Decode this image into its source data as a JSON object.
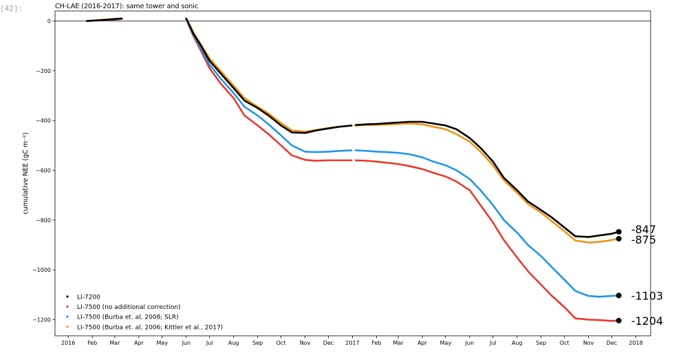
{
  "cell_prompt": "[42]:",
  "chart_data": {
    "type": "line",
    "title": "CH-LAE (2016-2017): same tower and sonic",
    "ylabel": "cumulative NEE (gC m⁻²)",
    "ylim": [
      -1265,
      40
    ],
    "x_ticks": [
      "2016",
      "Feb",
      "Mar",
      "Apr",
      "May",
      "Jun",
      "Jul",
      "Aug",
      "Sep",
      "Oct",
      "Nov",
      "Dec",
      "2017",
      "Feb",
      "Mar",
      "Apr",
      "May",
      "Jun",
      "Jul",
      "Aug",
      "Sep",
      "Oct",
      "Nov",
      "Dec",
      "2018"
    ],
    "y_ticks": [
      0,
      -200,
      -400,
      -600,
      -800,
      -1000,
      -1200
    ],
    "grid": false,
    "zero_line": true,
    "legend_position": "lower-left",
    "series": [
      {
        "name": "LI-7200",
        "color": "#000000",
        "x": [
          "2016-01-25",
          "2016-02-10",
          "2016-02-28",
          "2016-03-10",
          null,
          "2016-06-01",
          "2016-06-10",
          "2016-06-20",
          "2016-07-01",
          "2016-07-15",
          "2016-08-01",
          "2016-08-15",
          "2016-09-01",
          "2016-09-15",
          "2016-10-01",
          "2016-10-15",
          "2016-11-01",
          "2016-11-15",
          "2016-12-01",
          "2016-12-15",
          "2016-12-31",
          null,
          "2017-01-05",
          "2017-01-20",
          "2017-02-01",
          "2017-02-15",
          "2017-03-01",
          "2017-03-15",
          "2017-04-01",
          "2017-04-15",
          "2017-05-01",
          "2017-05-15",
          "2017-06-01",
          "2017-06-15",
          "2017-07-01",
          "2017-07-15",
          "2017-08-01",
          "2017-08-15",
          "2017-09-01",
          "2017-09-15",
          "2017-10-01",
          "2017-10-15",
          "2017-11-01",
          "2017-11-15",
          "2017-12-01",
          "2017-12-10"
        ],
        "y": [
          0,
          3,
          7,
          10,
          null,
          10,
          -50,
          -100,
          -160,
          -210,
          -270,
          -320,
          -350,
          -380,
          -420,
          -448,
          -450,
          -440,
          -432,
          -425,
          -420,
          null,
          -418,
          -415,
          -414,
          -411,
          -408,
          -405,
          -405,
          -412,
          -420,
          -435,
          -470,
          -510,
          -565,
          -630,
          -680,
          -725,
          -760,
          -790,
          -830,
          -865,
          -868,
          -862,
          -855,
          -847
        ]
      },
      {
        "name": "LI-7500 (no additional correction)",
        "color": "#e8392b",
        "x": [
          "2016-01-25",
          "2016-02-10",
          "2016-02-28",
          "2016-03-10",
          null,
          "2016-06-01",
          "2016-06-10",
          "2016-06-20",
          "2016-07-01",
          "2016-07-15",
          "2016-08-01",
          "2016-08-15",
          "2016-09-01",
          "2016-09-15",
          "2016-10-01",
          "2016-10-15",
          "2016-11-01",
          "2016-11-15",
          "2016-12-01",
          "2016-12-15",
          "2016-12-31",
          null,
          "2017-01-05",
          "2017-01-20",
          "2017-02-01",
          "2017-02-15",
          "2017-03-01",
          "2017-03-15",
          "2017-04-01",
          "2017-04-15",
          "2017-05-01",
          "2017-05-15",
          "2017-06-01",
          "2017-06-15",
          "2017-07-01",
          "2017-07-15",
          "2017-08-01",
          "2017-08-15",
          "2017-09-01",
          "2017-09-15",
          "2017-10-01",
          "2017-10-15",
          "2017-11-01",
          "2017-11-15",
          "2017-12-01",
          "2017-12-10"
        ],
        "y": [
          0,
          2,
          5,
          8,
          null,
          8,
          -60,
          -120,
          -190,
          -250,
          -310,
          -380,
          -420,
          -455,
          -500,
          -540,
          -558,
          -562,
          -560,
          -560,
          -560,
          null,
          -560,
          -562,
          -565,
          -570,
          -575,
          -583,
          -595,
          -610,
          -625,
          -645,
          -680,
          -740,
          -810,
          -880,
          -950,
          -1005,
          -1060,
          -1105,
          -1150,
          -1195,
          -1200,
          -1202,
          -1205,
          -1204
        ]
      },
      {
        "name": "LI-7500 (Burba et. al, 2008; SLR)",
        "color": "#1f96e8",
        "x": [
          "2016-01-25",
          "2016-02-10",
          "2016-02-28",
          "2016-03-10",
          null,
          "2016-06-01",
          "2016-06-10",
          "2016-06-20",
          "2016-07-01",
          "2016-07-15",
          "2016-08-01",
          "2016-08-15",
          "2016-09-01",
          "2016-09-15",
          "2016-10-01",
          "2016-10-15",
          "2016-11-01",
          "2016-11-15",
          "2016-12-01",
          "2016-12-15",
          "2016-12-31",
          null,
          "2017-01-05",
          "2017-01-20",
          "2017-02-01",
          "2017-02-15",
          "2017-03-01",
          "2017-03-15",
          "2017-04-01",
          "2017-04-15",
          "2017-05-01",
          "2017-05-15",
          "2017-06-01",
          "2017-06-15",
          "2017-07-01",
          "2017-07-15",
          "2017-08-01",
          "2017-08-15",
          "2017-09-01",
          "2017-09-15",
          "2017-10-01",
          "2017-10-15",
          "2017-11-01",
          "2017-11-15",
          "2017-12-01",
          "2017-12-10"
        ],
        "y": [
          0,
          3,
          6,
          9,
          null,
          9,
          -55,
          -110,
          -175,
          -230,
          -290,
          -345,
          -380,
          -415,
          -460,
          -500,
          -525,
          -527,
          -525,
          -522,
          -520,
          null,
          -520,
          -522,
          -525,
          -527,
          -530,
          -535,
          -548,
          -565,
          -580,
          -600,
          -635,
          -680,
          -740,
          -800,
          -850,
          -900,
          -945,
          -990,
          -1040,
          -1085,
          -1105,
          -1108,
          -1105,
          -1103
        ]
      },
      {
        "name": "LI-7500 (Burba et. al, 2006; Kittler et al., 2017)",
        "color": "#f0920f",
        "x": [
          "2016-01-25",
          "2016-02-10",
          "2016-02-28",
          "2016-03-10",
          null,
          "2016-06-01",
          "2016-06-10",
          "2016-06-20",
          "2016-07-01",
          "2016-07-15",
          "2016-08-01",
          "2016-08-15",
          "2016-09-01",
          "2016-09-15",
          "2016-10-01",
          "2016-10-15",
          "2016-11-01",
          "2016-11-15",
          "2016-12-01",
          "2016-12-15",
          "2016-12-31",
          null,
          "2017-01-05",
          "2017-01-20",
          "2017-02-01",
          "2017-02-15",
          "2017-03-01",
          "2017-03-15",
          "2017-04-01",
          "2017-04-15",
          "2017-05-01",
          "2017-05-15",
          "2017-06-01",
          "2017-06-15",
          "2017-07-01",
          "2017-07-15",
          "2017-08-01",
          "2017-08-15",
          "2017-09-01",
          "2017-09-15",
          "2017-10-01",
          "2017-10-15",
          "2017-11-01",
          "2017-11-15",
          "2017-12-01",
          "2017-12-10"
        ],
        "y": [
          0,
          4,
          8,
          11,
          null,
          11,
          -45,
          -95,
          -150,
          -200,
          -260,
          -310,
          -345,
          -372,
          -410,
          -440,
          -445,
          -438,
          -430,
          -425,
          -420,
          null,
          -420,
          -418,
          -417,
          -416,
          -414,
          -412,
          -415,
          -425,
          -435,
          -455,
          -485,
          -525,
          -580,
          -640,
          -690,
          -735,
          -770,
          -805,
          -845,
          -882,
          -890,
          -888,
          -880,
          -875
        ]
      }
    ],
    "end_points": [
      {
        "series": "LI-7200",
        "date": "2017-12-10",
        "value": -847,
        "label": "-847"
      },
      {
        "series": "LI-7500 (Burba et. al, 2006; Kittler et al., 2017)",
        "date": "2017-12-10",
        "value": -875,
        "label": "-875"
      },
      {
        "series": "LI-7500 (Burba et. al, 2008; SLR)",
        "date": "2017-12-10",
        "value": -1103,
        "label": "-1103"
      },
      {
        "series": "LI-7500 (no additional correction)",
        "date": "2017-12-10",
        "value": -1204,
        "label": "-1204"
      }
    ]
  }
}
